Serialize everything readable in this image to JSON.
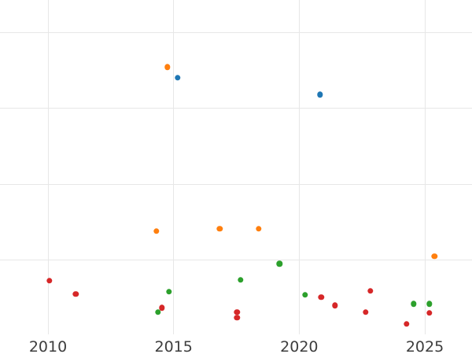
{
  "chart_data": {
    "type": "scatter",
    "title": "",
    "xlabel": "",
    "ylabel": "",
    "grid": true,
    "legend": "none visible",
    "x_axis": {
      "tick_labels": [
        "2010",
        "2015",
        "2020",
        "2025"
      ],
      "tick_years": [
        2010,
        2015,
        2020,
        2025
      ],
      "range_visible": [
        2008.1,
        2026.9
      ]
    },
    "y_axis": {
      "tick_labels": [],
      "note": "no y tick labels visible; y values estimated in gridline units (1 unit per horizontal gridline, 0 at bottom of plot area)",
      "gridline_values": [
        1,
        2,
        3,
        4
      ],
      "range_visible": [
        -0.24,
        4.42
      ]
    },
    "series": [
      {
        "name": "blue",
        "color": "#1f77b4",
        "points": [
          {
            "x": 2015.17,
            "y": 3.4
          },
          {
            "x": 2020.83,
            "y": 3.18
          }
        ]
      },
      {
        "name": "orange",
        "color": "#ff7f0e",
        "points": [
          {
            "x": 2014.76,
            "y": 3.54
          },
          {
            "x": 2014.32,
            "y": 1.38
          },
          {
            "x": 2016.83,
            "y": 1.41
          },
          {
            "x": 2018.39,
            "y": 1.41
          },
          {
            "x": 2025.38,
            "y": 1.05
          }
        ]
      },
      {
        "name": "green",
        "color": "#2ca02c",
        "points": [
          {
            "x": 2014.38,
            "y": 0.31
          },
          {
            "x": 2014.82,
            "y": 0.58
          },
          {
            "x": 2017.67,
            "y": 0.74
          },
          {
            "x": 2019.21,
            "y": 0.95
          },
          {
            "x": 2020.24,
            "y": 0.54
          },
          {
            "x": 2024.56,
            "y": 0.42
          },
          {
            "x": 2025.19,
            "y": 0.42
          }
        ]
      },
      {
        "name": "red",
        "color": "#d62728",
        "points": [
          {
            "x": 2010.06,
            "y": 0.73
          },
          {
            "x": 2011.1,
            "y": 0.55
          },
          {
            "x": 2014.54,
            "y": 0.37
          },
          {
            "x": 2017.52,
            "y": 0.31
          },
          {
            "x": 2017.52,
            "y": 0.24
          },
          {
            "x": 2020.87,
            "y": 0.51
          },
          {
            "x": 2021.43,
            "y": 0.4
          },
          {
            "x": 2022.65,
            "y": 0.31
          },
          {
            "x": 2022.84,
            "y": 0.59
          },
          {
            "x": 2024.28,
            "y": 0.16
          },
          {
            "x": 2025.19,
            "y": 0.3
          }
        ]
      }
    ]
  },
  "style": {
    "gridline_color": "#e7e7e7",
    "tick_label_color": "#3d3d3d",
    "background_color": "#ffffff"
  }
}
